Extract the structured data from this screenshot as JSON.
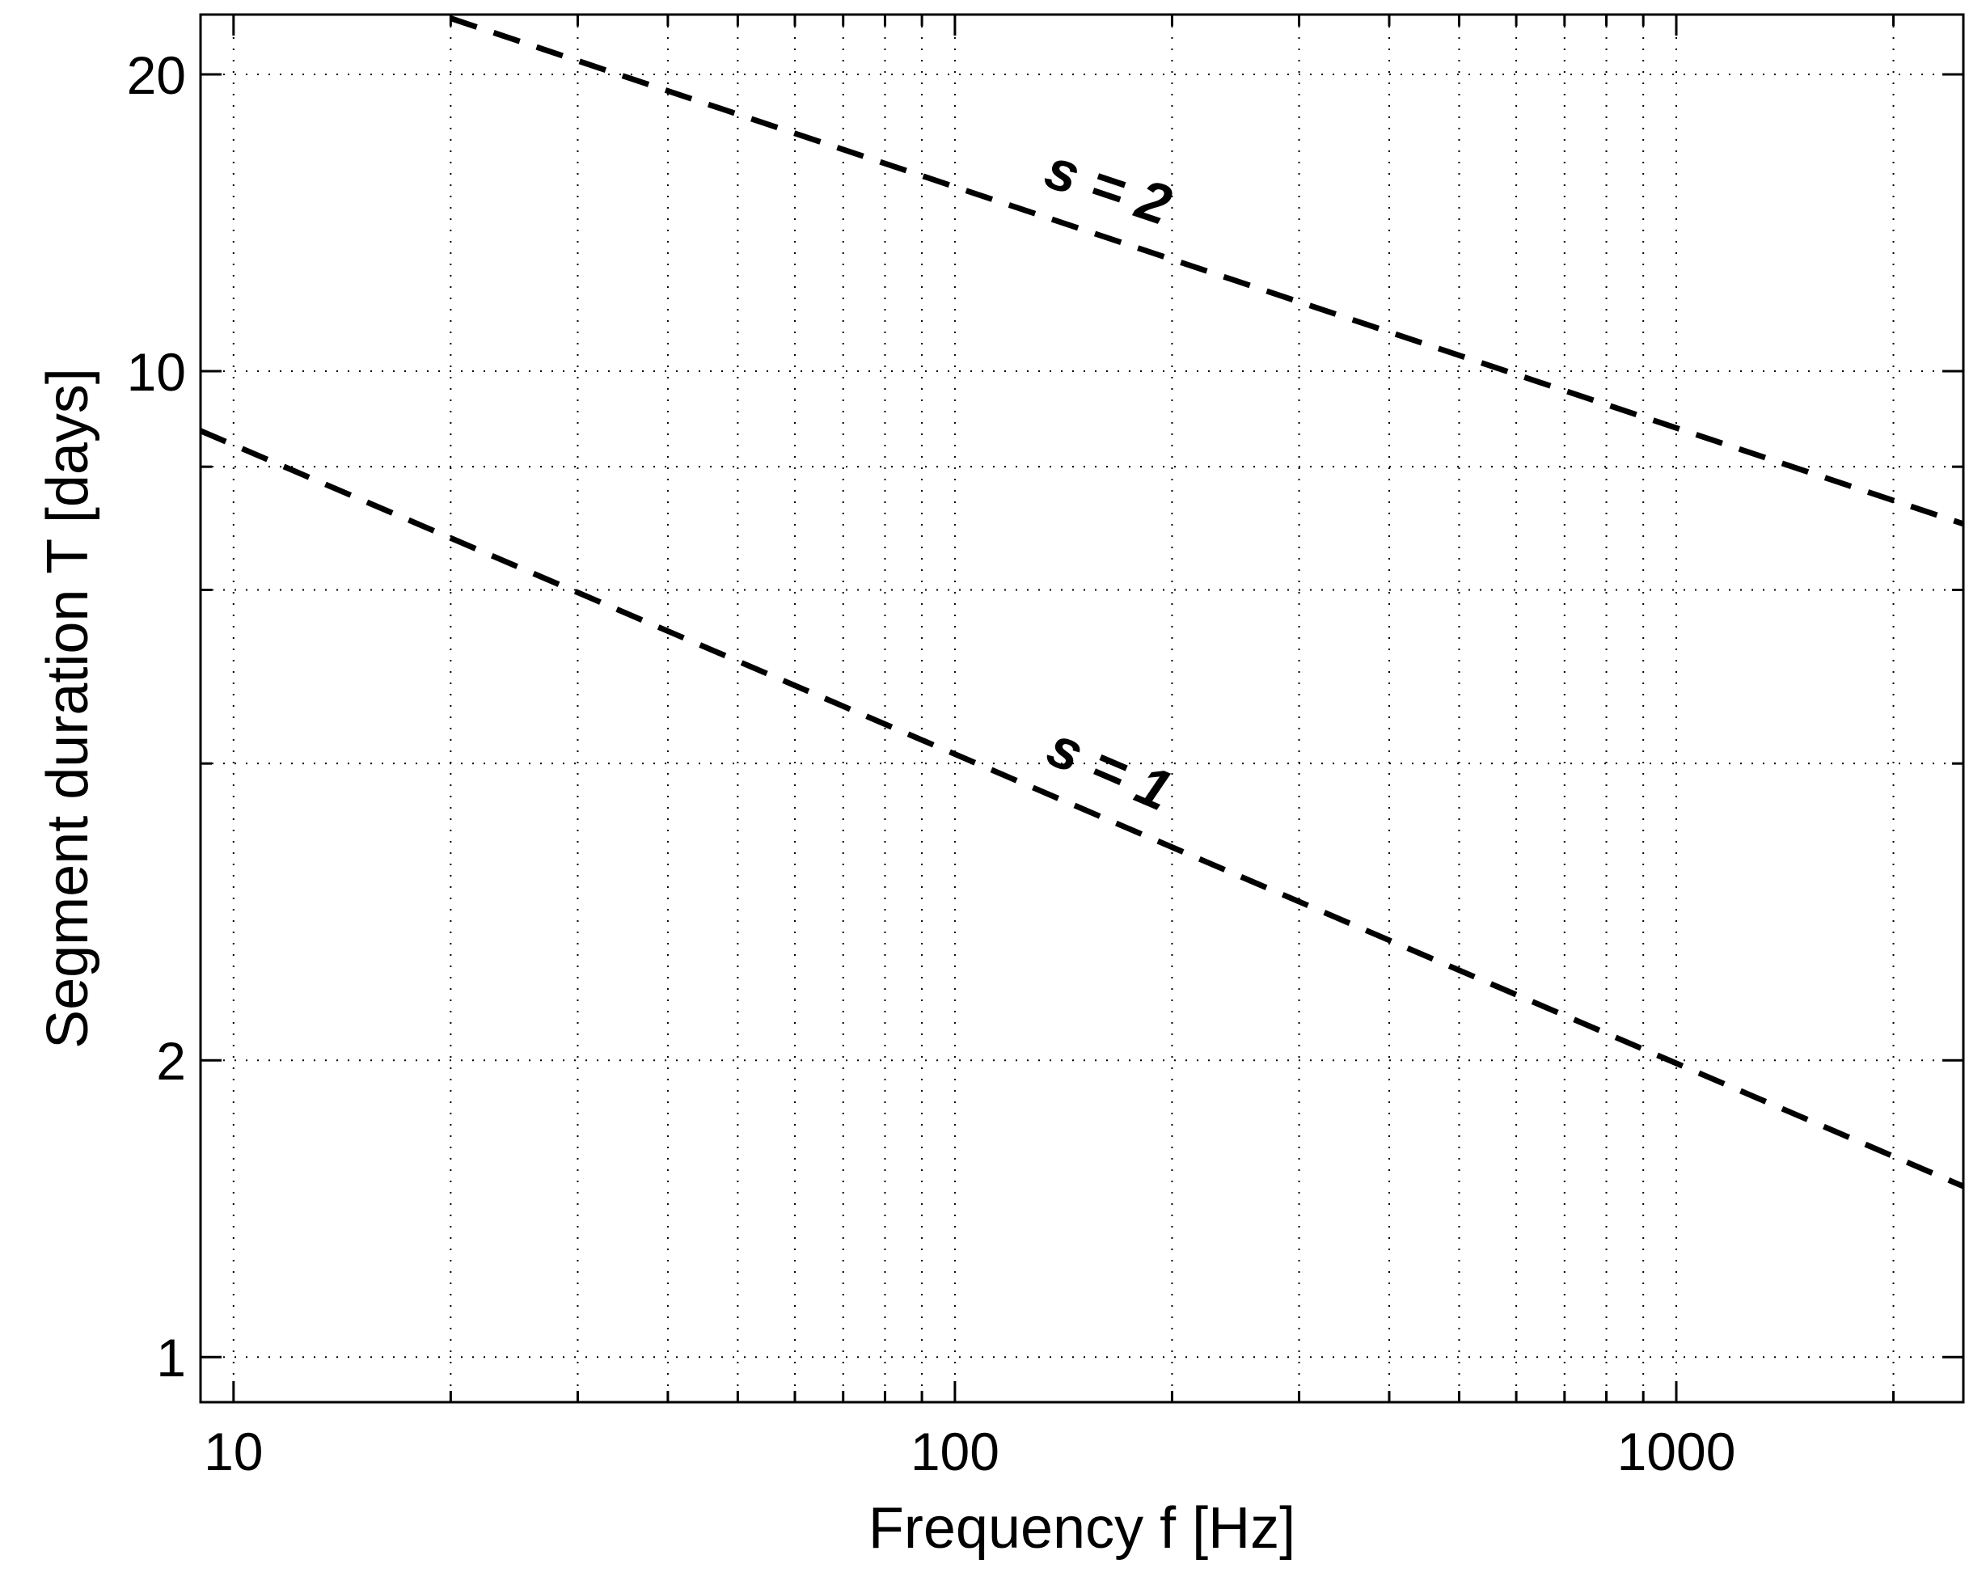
{
  "chart_data": {
    "type": "line",
    "xlabel": "Frequency f [Hz]",
    "ylabel": "Segment duration T [days]",
    "xscale": "log",
    "yscale": "log",
    "xlim": [
      9,
      2500
    ],
    "ylim": [
      0.9,
      23
    ],
    "grid": true,
    "grid_style": "dotted",
    "xticks": [
      10,
      100,
      1000
    ],
    "xtick_labels": [
      "10",
      "100",
      "1000"
    ],
    "yticks": [
      1,
      2,
      10,
      20
    ],
    "ytick_labels": [
      "1",
      "2",
      "10",
      "20"
    ],
    "x_minor_gridlines": [
      20,
      30,
      40,
      50,
      60,
      70,
      80,
      90,
      200,
      300,
      400,
      500,
      600,
      700,
      800,
      900,
      2000
    ],
    "y_minor_gridlines": [
      4,
      6,
      8
    ],
    "line_color": "#000000",
    "line_style": "dashed",
    "series": [
      {
        "name": "s = 1",
        "x": [
          9,
          2500
        ],
        "y": [
          8.7,
          1.49
        ]
      },
      {
        "name": "s = 2",
        "x": [
          20,
          2500
        ],
        "y": [
          22.8,
          7.0
        ]
      }
    ],
    "annotations": [
      {
        "text": "s = 2",
        "series": 1,
        "at_x": 160
      },
      {
        "text": "s = 1",
        "series": 0,
        "at_x": 160
      }
    ]
  }
}
